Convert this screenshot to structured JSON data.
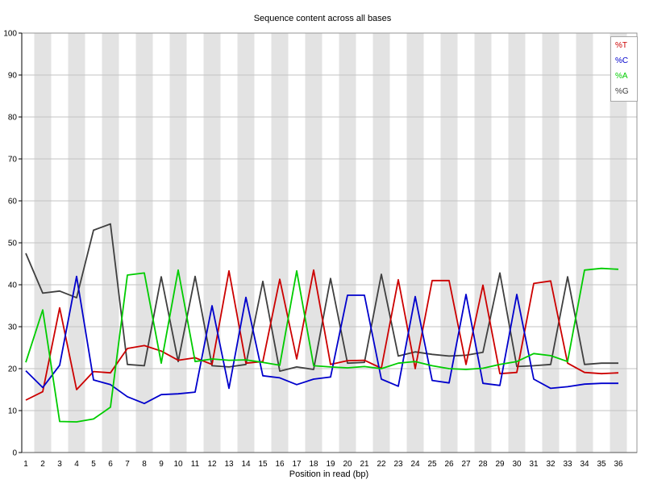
{
  "page": {
    "title": "Sequence content across all bases"
  },
  "chart_data": {
    "type": "line",
    "title": "Sequence content across all bases",
    "xlabel": "Position in read (bp)",
    "ylabel": "",
    "ylim": [
      0,
      100
    ],
    "y_ticks": [
      0,
      10,
      20,
      30,
      40,
      50,
      60,
      70,
      80,
      90,
      100
    ],
    "x_ticks": [
      1,
      2,
      3,
      4,
      5,
      6,
      7,
      8,
      9,
      10,
      11,
      12,
      13,
      14,
      15,
      16,
      17,
      18,
      19,
      20,
      21,
      22,
      23,
      24,
      25,
      26,
      27,
      28,
      29,
      30,
      31,
      32,
      33,
      34,
      35,
      36
    ],
    "grid": true,
    "legend_position": "top-right",
    "background_bands": "alternating white/gray per base position",
    "series": [
      {
        "name": "%T",
        "color": "#cc0000",
        "values": [
          12.5,
          14.5,
          34.5,
          15,
          19.3,
          19,
          24.8,
          25.5,
          24.2,
          22,
          22.6,
          21,
          43.3,
          21.3,
          21.7,
          41.3,
          22.3,
          43.5,
          21,
          21.9,
          22,
          20.1,
          41.2,
          20,
          41,
          41,
          21,
          39.9,
          18.8,
          19.1,
          40.3,
          40.9,
          21.3,
          19.1,
          18.8,
          19
        ]
      },
      {
        "name": "%C",
        "color": "#0000cc",
        "values": [
          19.5,
          15.5,
          20.8,
          42,
          17.3,
          16.2,
          13.3,
          11.7,
          13.8,
          14,
          14.4,
          35,
          15.3,
          37,
          18.3,
          17.8,
          16.2,
          17.5,
          18,
          37.5,
          37.5,
          17.5,
          15.8,
          37.2,
          17.2,
          16.6,
          37.7,
          16.5,
          16,
          37.7,
          17.5,
          15.3,
          15.7,
          16.3,
          16.5,
          16.5
        ]
      },
      {
        "name": "%A",
        "color": "#00cc00",
        "values": [
          21.5,
          34,
          7.4,
          7.3,
          8,
          10.8,
          42.3,
          42.8,
          21.3,
          43.5,
          21.7,
          22.3,
          22,
          22.1,
          21.5,
          20.8,
          43.3,
          20.7,
          20.4,
          20.2,
          20.5,
          20,
          21.3,
          21.7,
          20.7,
          20,
          19.8,
          20.1,
          21,
          21.7,
          23.6,
          23.1,
          21.7,
          43.5,
          43.9,
          43.7
        ]
      },
      {
        "name": "%G",
        "color": "#3f3f3f",
        "values": [
          47.5,
          38,
          38.5,
          36.9,
          53,
          54.5,
          21,
          20.7,
          41.9,
          21.7,
          42,
          20.7,
          20.4,
          21,
          40.8,
          19.4,
          20.4,
          19.8,
          41.5,
          21.3,
          21.5,
          42.5,
          23,
          24,
          23.4,
          23,
          23.2,
          23.9,
          42.8,
          20.5,
          20.7,
          21,
          41.9,
          21,
          21.3,
          21.3
        ]
      }
    ],
    "colors": {
      "band_gray": "#e3e3e3",
      "gridline": "#c3c3c3",
      "frame": "#949494",
      "axis": "#000000",
      "tick_label": "#000000"
    }
  }
}
